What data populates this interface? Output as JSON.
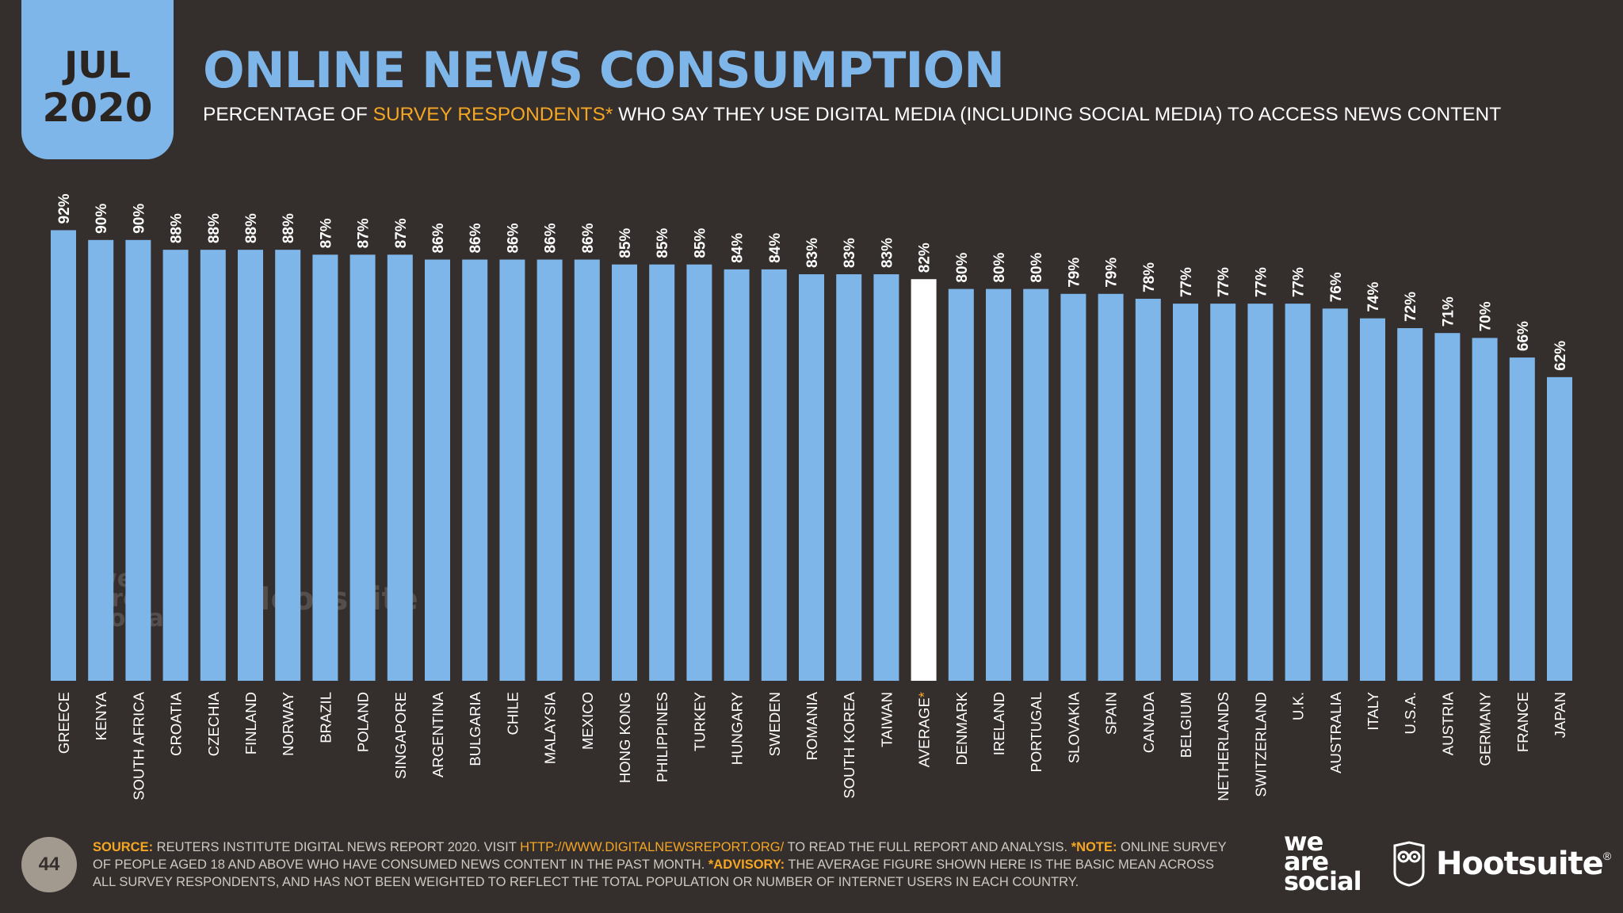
{
  "header": {
    "month": "JUL",
    "year": "2020",
    "title": "ONLINE NEWS CONSUMPTION",
    "subtitle_pre": "PERCENTAGE OF ",
    "subtitle_highlight": "SURVEY RESPONDENTS*",
    "subtitle_post": " WHO SAY THEY USE DIGITAL MEDIA (INCLUDING SOCIAL MEDIA) TO ACCESS NEWS CONTENT"
  },
  "colors": {
    "background": "#342e2c",
    "bar": "#7fb6e9",
    "highlight_bar": "#ffffff",
    "accent": "#f5a623"
  },
  "chart_data": {
    "type": "bar",
    "title": "ONLINE NEWS CONSUMPTION",
    "ylim": [
      0,
      100
    ],
    "grid": false,
    "categories": [
      "GREECE",
      "KENYA",
      "SOUTH AFRICA",
      "CROATIA",
      "CZECHIA",
      "FINLAND",
      "NORWAY",
      "BRAZIL",
      "POLAND",
      "SINGAPORE",
      "ARGENTINA",
      "BULGARIA",
      "CHILE",
      "MALAYSIA",
      "MEXICO",
      "HONG KONG",
      "PHILIPPINES",
      "TURKEY",
      "HUNGARY",
      "SWEDEN",
      "ROMANIA",
      "SOUTH KOREA",
      "TAIWAN",
      "AVERAGE",
      "DENMARK",
      "IRELAND",
      "PORTUGAL",
      "SLOVAKIA",
      "SPAIN",
      "CANADA",
      "BELGIUM",
      "NETHERLANDS",
      "SWITZERLAND",
      "U.K.",
      "AUSTRALIA",
      "ITALY",
      "U.S.A.",
      "AUSTRIA",
      "GERMANY",
      "FRANCE",
      "JAPAN"
    ],
    "values": [
      92,
      90,
      90,
      88,
      88,
      88,
      88,
      87,
      87,
      87,
      86,
      86,
      86,
      86,
      86,
      85,
      85,
      85,
      84,
      84,
      83,
      83,
      83,
      82,
      80,
      80,
      80,
      79,
      79,
      78,
      77,
      77,
      77,
      77,
      76,
      74,
      72,
      71,
      70,
      66,
      62
    ],
    "value_labels": [
      "92%",
      "90%",
      "90%",
      "88%",
      "88%",
      "88%",
      "88%",
      "87%",
      "87%",
      "87%",
      "86%",
      "86%",
      "86%",
      "86%",
      "86%",
      "85%",
      "85%",
      "85%",
      "84%",
      "84%",
      "83%",
      "83%",
      "83%",
      "82%",
      "80%",
      "80%",
      "80%",
      "79%",
      "79%",
      "78%",
      "77%",
      "77%",
      "77%",
      "77%",
      "76%",
      "74%",
      "72%",
      "71%",
      "70%",
      "66%",
      "62%"
    ],
    "highlight_category": "AVERAGE",
    "highlight_marker": "*"
  },
  "footer": {
    "page_number": "44",
    "source_label": "SOURCE:",
    "source_text_1": " REUTERS INSTITUTE DIGITAL NEWS REPORT 2020. VISIT ",
    "source_url": "HTTP://WWW.DIGITALNEWSREPORT.ORG/",
    "source_text_2": " TO READ THE FULL REPORT AND ANALYSIS. ",
    "note_label": "*NOTE:",
    "note_text": " ONLINE SURVEY OF PEOPLE AGED 18 AND ABOVE WHO HAVE CONSUMED NEWS CONTENT IN THE PAST MONTH. ",
    "advisory_label": "*ADVISORY:",
    "advisory_text": " THE AVERAGE FIGURE SHOWN HERE IS THE BASIC MEAN ACROSS ALL SURVEY RESPONDENTS, AND HAS NOT BEEN WEIGHTED TO REFLECT THE TOTAL POPULATION OR NUMBER OF INTERNET USERS IN EACH COUNTRY."
  },
  "branding": {
    "we_are_social": [
      "we",
      "are",
      "social"
    ],
    "hootsuite": "Hootsuite",
    "hootsuite_mark": "®"
  }
}
